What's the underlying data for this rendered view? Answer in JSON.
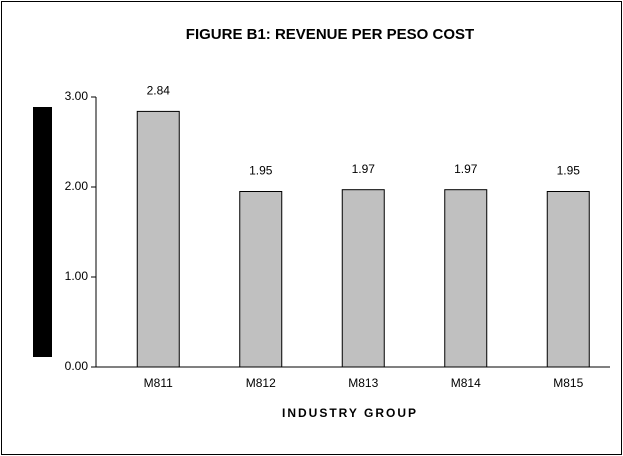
{
  "chart_data": {
    "type": "bar",
    "title": "FIGURE B1: REVENUE PER PESO COST",
    "x_label": "INDUSTRY GROUP",
    "categories": [
      "M811",
      "M812",
      "M813",
      "M814",
      "M815"
    ],
    "values": [
      2.84,
      1.95,
      1.97,
      1.97,
      1.95
    ],
    "color": "#c0c0c0",
    "ylim": [
      0,
      3
    ],
    "yticks": [
      {
        "value": 0,
        "label": "0.00"
      },
      {
        "value": 1,
        "label": "1.00"
      },
      {
        "value": 2,
        "label": "2.00"
      },
      {
        "value": 3,
        "label": "3.00"
      }
    ]
  }
}
